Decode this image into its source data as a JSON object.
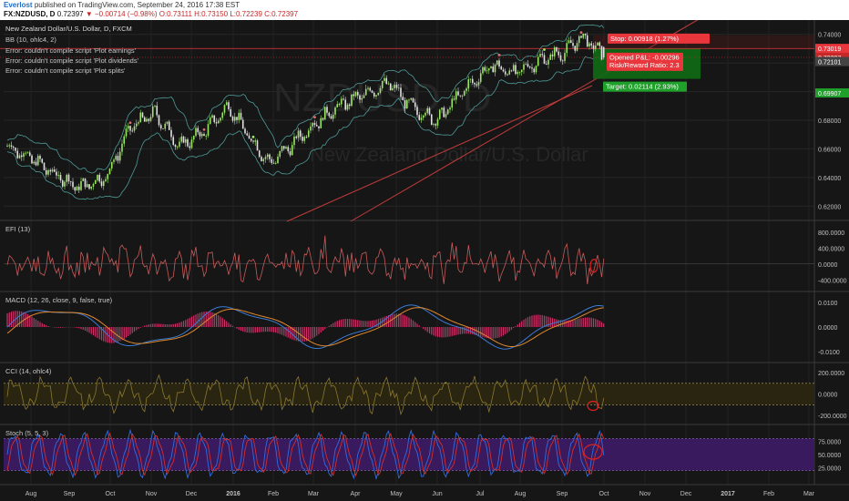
{
  "header": {
    "author": "Everlost",
    "published": "published on TradingView.com, September 24, 2016 17:38 EST",
    "symbol": "FX:NZDUSD, D",
    "price": "0.72397",
    "change_arrow": "▼",
    "change": "−0.00714 (−0.98%)",
    "open": "O:0.73111",
    "high": "H:0.73150",
    "low": "L:0.72239",
    "close": "C:0.72397"
  },
  "legend": {
    "title": "New Zealand Dollar/U.S. Dollar, D, FXCM",
    "bb": "BB (10, ohlc4, 2)",
    "errors": [
      "Error: couldn't compile script 'Plot earnings'",
      "Error: couldn't compile script 'Plot dividends'",
      "Error: couldn't compile script 'Plot splits'"
    ]
  },
  "watermark": {
    "symbol": "NZDUSD, D",
    "name": "New Zealand Dollar/U.S. Dollar"
  },
  "position_tool": {
    "stop_label": "Stop: 0.00918 (1.27%)",
    "pnl_label": "Opened P&L: -0.00296",
    "rr_label": "Risk/Reward Ratio: 2.3",
    "target_label": "Target: 0.02114 (2.93%)",
    "entry": 0.7301,
    "stop": 0.7393,
    "target": 0.7089,
    "current": 0.724
  },
  "price_axis": {
    "ticks": [
      "0.74000",
      "0.72000",
      "0.70000",
      "0.68000",
      "0.66000",
      "0.64000",
      "0.62000"
    ],
    "tick_values": [
      0.74,
      0.72,
      0.7,
      0.68,
      0.66,
      0.64,
      0.62
    ],
    "markers": [
      {
        "text": "0.73019",
        "value": 0.73019,
        "color": "#e8363c"
      },
      {
        "text": "0.72397",
        "value": 0.72397,
        "color": "#c62828"
      },
      {
        "text": "0.72101",
        "value": 0.72101,
        "color": "#444444"
      },
      {
        "text": "0.69907",
        "value": 0.69907,
        "color": "#1fa02a"
      }
    ]
  },
  "panes": [
    {
      "label": "EFI (13)",
      "ticks": [
        "800.0000",
        "400.0000",
        "0.0000",
        "-400.0000"
      ],
      "tick_values": [
        800,
        400,
        0,
        -400
      ]
    },
    {
      "label": "MACD (12, 26, close, 9, false, true)",
      "ticks": [
        "0.0100",
        "0.0000",
        "-0.0100"
      ],
      "tick_values": [
        0.01,
        0,
        -0.01
      ]
    },
    {
      "label": "CCI (14, ohlc4)",
      "ticks": [
        "200.0000",
        "0.0000",
        "-200.0000"
      ],
      "tick_values": [
        200,
        0,
        -200
      ]
    },
    {
      "label": "Stoch (5, 5, 3)",
      "ticks": [
        "75.0000",
        "50.0000",
        "25.0000"
      ],
      "tick_values": [
        75,
        50,
        25
      ]
    }
  ],
  "time_axis": [
    "Aug",
    "Sep",
    "Oct",
    "Nov",
    "Dec",
    "2016",
    "Feb",
    "Mar",
    "Apr",
    "May",
    "Jun",
    "Jul",
    "Aug",
    "Sep",
    "Oct",
    "Nov",
    "Dec",
    "2017",
    "Feb",
    "Mar"
  ],
  "colors": {
    "bull": "#9be564",
    "bear": "#e0e0e0",
    "bb": "#4e9a96",
    "efi": "#c85a5a",
    "macd": "#3a7bd5",
    "signal": "#e0892c",
    "hist": "#d0306a",
    "cci": "#8a7830",
    "stoch_k": "#2f6de0",
    "stoch_d": "#d0302c",
    "trendline": "#c23b3b",
    "highlight_circle": "#e02020"
  },
  "chart_data": {
    "type": "candlestick",
    "symbol": "FX:NZDUSD",
    "interval": "D",
    "x": [
      "2015-08",
      "2015-09",
      "2015-10",
      "2015-11",
      "2015-12",
      "2016-01",
      "2016-02",
      "2016-03",
      "2016-04",
      "2016-05",
      "2016-06",
      "2016-07",
      "2016-08",
      "2016-09"
    ],
    "approx_monthly_close": [
      0.66,
      0.639,
      0.668,
      0.66,
      0.683,
      0.648,
      0.66,
      0.69,
      0.698,
      0.68,
      0.712,
      0.716,
      0.722,
      0.724
    ],
    "ylim": [
      0.61,
      0.75
    ],
    "last": {
      "open": 0.73111,
      "high": 0.7315,
      "low": 0.72239,
      "close": 0.72397,
      "change": -0.00714,
      "change_pct": -0.98
    },
    "indicators": [
      {
        "name": "EFI",
        "params": "13",
        "ylim": [
          -600,
          1000
        ]
      },
      {
        "name": "MACD",
        "params": "12, 26, close, 9, false, true",
        "ylim": [
          -0.013,
          0.013
        ]
      },
      {
        "name": "CCI",
        "params": "14, ohlc4",
        "ylim": [
          -250,
          260
        ],
        "bands": [
          100,
          -100
        ]
      },
      {
        "name": "Stoch",
        "params": "5, 5, 3",
        "ylim": [
          0,
          100
        ],
        "bands": [
          80,
          20
        ]
      }
    ]
  }
}
